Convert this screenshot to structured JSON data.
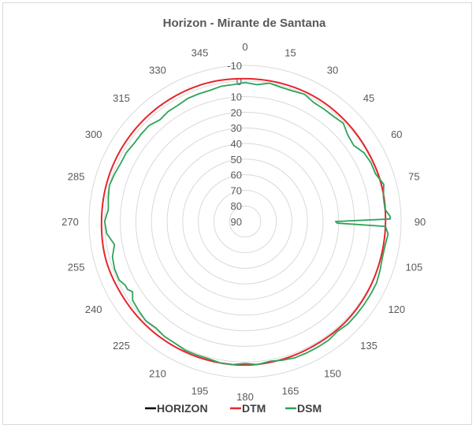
{
  "chart_data": {
    "type": "radar",
    "title": "Horizon - Mirante de Santana",
    "angle_labels": [
      "0",
      "15",
      "30",
      "45",
      "60",
      "75",
      "90",
      "105",
      "120",
      "135",
      "150",
      "165",
      "180",
      "195",
      "210",
      "225",
      "240",
      "255",
      "270",
      "285",
      "300",
      "315",
      "330",
      "345"
    ],
    "radial_labels": [
      "-10",
      "0",
      "10",
      "20",
      "30",
      "40",
      "50",
      "60",
      "70",
      "80",
      "90"
    ],
    "radial_range": [
      -10,
      90
    ],
    "radial_reversed": true,
    "grid": true,
    "legend_position": "bottom",
    "series": [
      {
        "name": "HORIZON",
        "color": "#000000",
        "values": []
      },
      {
        "name": "DTM",
        "color": "#e8242c",
        "azimuth": [
          0,
          15,
          30,
          45,
          60,
          75,
          90,
          105,
          120,
          135,
          150,
          165,
          180,
          195,
          210,
          225,
          240,
          255,
          270,
          285,
          300,
          315,
          330,
          345
        ],
        "values": [
          -1.5,
          -1.5,
          -1.5,
          -1,
          -0.5,
          -0.5,
          0,
          0,
          -0.5,
          -1,
          -1,
          -1.5,
          -2,
          -2,
          -2,
          -2,
          -2,
          -2.5,
          -2,
          -2,
          -2,
          -2,
          -2,
          -2
        ]
      },
      {
        "name": "DSM",
        "color": "#2ea35a",
        "azimuth": [
          0,
          5,
          10,
          15,
          20,
          25,
          30,
          35,
          40,
          45,
          50,
          55,
          60,
          65,
          70,
          75,
          80,
          85,
          88,
          89,
          90,
          91,
          92,
          95,
          100,
          105,
          110,
          115,
          120,
          125,
          130,
          135,
          140,
          145,
          150,
          155,
          160,
          165,
          170,
          175,
          180,
          185,
          190,
          195,
          200,
          205,
          210,
          215,
          220,
          225,
          230,
          235,
          238,
          240,
          242,
          245,
          250,
          255,
          260,
          265,
          270,
          275,
          280,
          285,
          290,
          295,
          300,
          305,
          310,
          315,
          320,
          325,
          330,
          335,
          340,
          345,
          350,
          355
        ],
        "values": [
          1,
          2,
          0,
          1,
          1,
          0,
          2,
          2,
          2,
          1,
          4,
          5,
          2,
          1,
          1,
          -2,
          0,
          0,
          -3,
          -3,
          32,
          31,
          0,
          -2,
          -1,
          -1,
          -2,
          -3,
          -3,
          -3,
          -3,
          -3,
          -2,
          -3,
          -3,
          -3,
          -3,
          -2,
          -1,
          -2,
          -1,
          -2,
          -2,
          -1,
          -1,
          -1,
          0,
          0,
          1,
          0,
          1,
          2,
          5,
          3,
          3,
          1,
          1,
          2,
          5,
          1,
          0,
          2,
          1,
          0,
          1,
          2,
          2,
          3,
          3,
          3,
          5,
          4,
          4,
          3,
          3,
          3,
          2,
          2
        ]
      }
    ]
  }
}
